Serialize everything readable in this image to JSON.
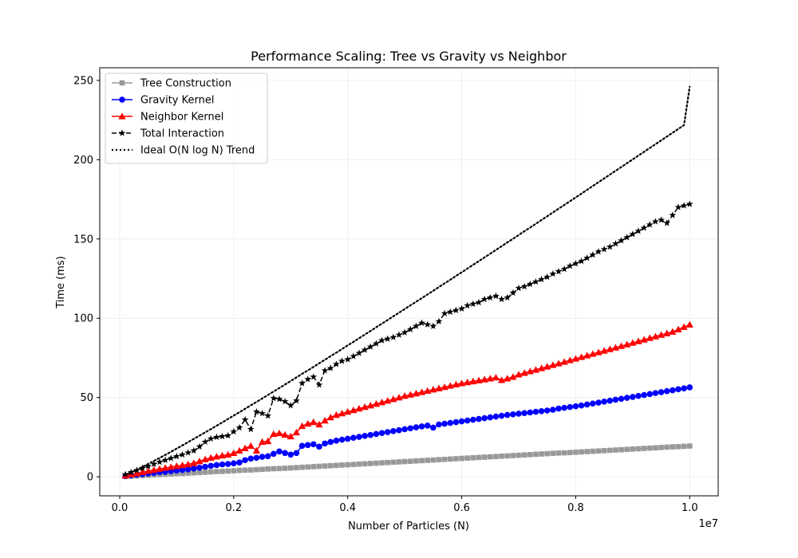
{
  "chart_data": {
    "type": "line",
    "title": "Performance Scaling: Tree vs Gravity vs Neighbor",
    "xlabel": "Number of Particles (N)",
    "ylabel": "Time (ms)",
    "x_offset_label": "1e7",
    "xlim": [
      -350000,
      10500000
    ],
    "ylim": [
      -12,
      258
    ],
    "x_ticks": [
      0,
      2000000,
      4000000,
      6000000,
      8000000,
      10000000
    ],
    "x_tick_labels": [
      "0.0",
      "0.2",
      "0.4",
      "0.6",
      "0.8",
      "1.0"
    ],
    "y_ticks": [
      0,
      50,
      100,
      150,
      200,
      250
    ],
    "y_tick_labels": [
      "0",
      "50",
      "100",
      "150",
      "200",
      "250"
    ],
    "grid": true,
    "legend_position": "top-left",
    "x": [
      100000,
      200000,
      300000,
      400000,
      500000,
      600000,
      700000,
      800000,
      900000,
      1000000,
      1100000,
      1200000,
      1300000,
      1400000,
      1500000,
      1600000,
      1700000,
      1800000,
      1900000,
      2000000,
      2100000,
      2200000,
      2300000,
      2400000,
      2500000,
      2600000,
      2700000,
      2800000,
      2900000,
      3000000,
      3100000,
      3200000,
      3300000,
      3400000,
      3500000,
      3600000,
      3700000,
      3800000,
      3900000,
      4000000,
      4100000,
      4200000,
      4300000,
      4400000,
      4500000,
      4600000,
      4700000,
      4800000,
      4900000,
      5000000,
      5100000,
      5200000,
      5300000,
      5400000,
      5500000,
      5600000,
      5700000,
      5800000,
      5900000,
      6000000,
      6100000,
      6200000,
      6300000,
      6400000,
      6500000,
      6600000,
      6700000,
      6800000,
      6900000,
      7000000,
      7100000,
      7200000,
      7300000,
      7400000,
      7500000,
      7600000,
      7700000,
      7800000,
      7900000,
      8000000,
      8100000,
      8200000,
      8300000,
      8400000,
      8500000,
      8600000,
      8700000,
      8800000,
      8900000,
      9000000,
      9100000,
      9200000,
      9300000,
      9400000,
      9500000,
      9600000,
      9700000,
      9800000,
      9900000,
      10000000
    ],
    "series": [
      {
        "name": "Tree Construction",
        "color": "#999999",
        "marker": "square",
        "line": "solid",
        "values": [
          0.2,
          0.4,
          0.6,
          0.8,
          1.0,
          1.2,
          1.4,
          1.6,
          1.8,
          2.0,
          2.1,
          2.3,
          2.5,
          2.7,
          2.9,
          3.1,
          3.3,
          3.4,
          3.6,
          3.8,
          4.0,
          4.2,
          4.3,
          4.5,
          4.7,
          4.9,
          5.1,
          5.2,
          5.4,
          5.6,
          5.8,
          6.0,
          6.2,
          6.4,
          6.6,
          6.8,
          7.0,
          7.2,
          7.4,
          7.6,
          7.8,
          8.0,
          8.2,
          8.4,
          8.6,
          8.8,
          9.0,
          9.2,
          9.4,
          9.6,
          9.8,
          10.0,
          10.2,
          10.4,
          10.6,
          10.8,
          11.0,
          11.2,
          11.4,
          11.6,
          11.8,
          12.0,
          12.2,
          12.4,
          12.6,
          12.8,
          13.0,
          13.2,
          13.4,
          13.6,
          13.8,
          14.0,
          14.2,
          14.4,
          14.6,
          14.8,
          15.0,
          15.1,
          15.3,
          15.5,
          15.7,
          15.9,
          16.1,
          16.3,
          16.5,
          16.7,
          16.9,
          17.1,
          17.3,
          17.5,
          17.7,
          17.9,
          18.1,
          18.3,
          18.5,
          18.7,
          18.9,
          19.0,
          19.2,
          19.4
        ]
      },
      {
        "name": "Gravity Kernel",
        "color": "#0000ff",
        "marker": "circle",
        "line": "solid",
        "values": [
          0.5,
          0.9,
          1.3,
          1.7,
          2.1,
          2.5,
          2.9,
          3.2,
          3.6,
          4.0,
          4.3,
          4.7,
          5.2,
          5.7,
          6.3,
          6.9,
          7.4,
          7.8,
          8.1,
          8.5,
          9.0,
          10.5,
          11.5,
          12.0,
          12.6,
          13.0,
          14.5,
          16.0,
          15.0,
          14.0,
          15.0,
          19.5,
          20.0,
          20.5,
          19.0,
          21.0,
          22.0,
          22.8,
          23.4,
          24.0,
          24.6,
          25.2,
          25.8,
          26.4,
          27.0,
          27.6,
          28.2,
          28.8,
          29.4,
          30.0,
          30.6,
          31.2,
          31.8,
          32.3,
          31.0,
          33.0,
          33.5,
          34.0,
          34.5,
          35.0,
          35.5,
          36.0,
          36.5,
          37.0,
          37.5,
          38.0,
          38.5,
          39.0,
          39.4,
          39.8,
          40.2,
          40.6,
          41.0,
          41.4,
          41.8,
          42.3,
          43.0,
          43.5,
          44.0,
          44.5,
          45.0,
          45.6,
          46.2,
          46.8,
          47.4,
          48.0,
          48.6,
          49.2,
          49.8,
          50.4,
          51.0,
          51.6,
          52.2,
          52.8,
          53.4,
          54.0,
          54.6,
          55.2,
          55.8,
          56.4
        ]
      },
      {
        "name": "Neighbor Kernel",
        "color": "#ff0000",
        "marker": "triangle",
        "line": "solid",
        "values": [
          0.8,
          1.5,
          2.2,
          2.9,
          3.6,
          4.3,
          5.0,
          5.6,
          6.2,
          6.8,
          7.3,
          7.9,
          8.6,
          9.8,
          11.0,
          12.0,
          12.8,
          13.4,
          14.0,
          15.0,
          16.5,
          18.0,
          19.5,
          16.5,
          22.0,
          22.5,
          27.0,
          27.5,
          26.5,
          25.5,
          28.0,
          32.0,
          33.5,
          34.5,
          33.0,
          35.5,
          37.5,
          39.0,
          40.0,
          41.0,
          42.0,
          43.0,
          44.0,
          45.0,
          46.0,
          47.0,
          48.0,
          49.0,
          50.0,
          51.0,
          51.8,
          52.6,
          53.4,
          54.2,
          55.0,
          55.8,
          56.6,
          57.4,
          58.2,
          59.0,
          59.6,
          60.2,
          60.8,
          61.4,
          62.0,
          62.6,
          61.0,
          62.0,
          63.0,
          64.5,
          65.5,
          66.5,
          67.5,
          68.5,
          69.5,
          70.5,
          71.5,
          72.5,
          73.5,
          74.5,
          75.5,
          76.5,
          77.5,
          78.5,
          79.5,
          80.5,
          81.5,
          82.5,
          83.5,
          84.5,
          85.5,
          86.5,
          87.5,
          88.5,
          89.5,
          90.5,
          91.5,
          93.0,
          94.5,
          96.0
        ]
      },
      {
        "name": "Total Interaction",
        "color": "#000000",
        "marker": "star",
        "line": "dashed",
        "values": [
          1.5,
          2.8,
          4.1,
          5.4,
          6.7,
          8.0,
          9.3,
          10.5,
          11.7,
          12.9,
          14.0,
          15.2,
          16.5,
          19.0,
          22.0,
          24.0,
          25.0,
          25.5,
          26.0,
          28.5,
          31.0,
          36.0,
          30.0,
          41.0,
          40.0,
          38.5,
          49.5,
          49.0,
          47.5,
          45.0,
          48.0,
          59.0,
          61.5,
          63.0,
          58.0,
          67.0,
          68.5,
          71.0,
          73.0,
          74.0,
          76.0,
          78.0,
          80.0,
          82.0,
          84.0,
          86.0,
          87.0,
          88.0,
          89.5,
          91.0,
          93.0,
          95.0,
          97.0,
          96.0,
          95.0,
          98.0,
          103.0,
          104.0,
          105.0,
          106.0,
          108.0,
          109.0,
          110.0,
          112.0,
          113.0,
          114.0,
          112.0,
          113.0,
          116.0,
          119.0,
          120.0,
          121.5,
          123.0,
          124.5,
          126.0,
          128.0,
          129.5,
          131.0,
          133.0,
          134.5,
          136.0,
          138.0,
          140.0,
          142.0,
          143.5,
          145.0,
          147.0,
          149.0,
          151.0,
          153.0,
          155.0,
          157.0,
          159.0,
          161.0,
          162.0,
          160.0,
          165.0,
          170.0,
          171.0,
          172.0
        ]
      },
      {
        "name": "Ideal O(N log N) Trend",
        "color": "#000000",
        "marker": "none",
        "line": "dotted",
        "values": [
          1.3,
          2.8,
          4.5,
          6.3,
          8.1,
          10.0,
          11.9,
          13.8,
          15.8,
          17.8,
          19.8,
          21.9,
          23.9,
          26.0,
          28.0,
          30.1,
          32.2,
          34.3,
          36.5,
          38.6,
          40.7,
          42.9,
          45.1,
          47.2,
          49.4,
          51.6,
          53.8,
          56.0,
          58.2,
          60.4,
          62.7,
          64.9,
          67.1,
          69.3,
          71.6,
          73.8,
          76.1,
          78.3,
          80.6,
          82.9,
          85.1,
          87.4,
          89.7,
          92.0,
          94.3,
          96.6,
          98.9,
          101.2,
          103.5,
          105.8,
          108.1,
          110.4,
          112.7,
          115.0,
          117.3,
          119.7,
          122.0,
          124.3,
          126.7,
          129.0,
          131.3,
          133.7,
          136.0,
          138.4,
          140.7,
          143.1,
          145.4,
          147.8,
          150.1,
          152.5,
          154.9,
          157.2,
          159.6,
          162.0,
          164.3,
          166.7,
          169.1,
          171.5,
          173.8,
          176.2,
          178.6,
          181.0,
          183.4,
          185.8,
          188.2,
          190.6,
          193.0,
          195.4,
          197.8,
          200.2,
          202.6,
          205.0,
          207.4,
          209.8,
          212.2,
          214.6,
          217.0,
          219.4,
          221.8,
          246.0
        ]
      }
    ]
  }
}
